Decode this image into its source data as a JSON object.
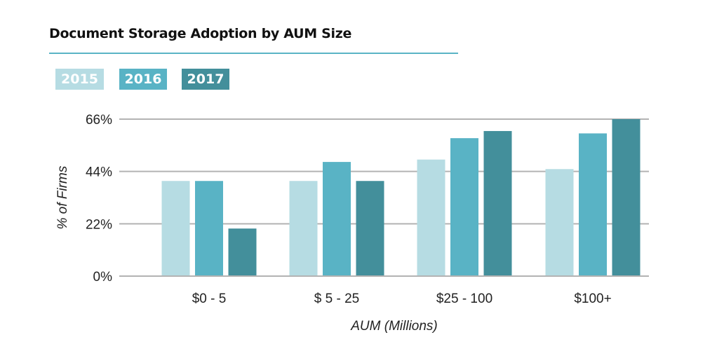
{
  "chart_data": {
    "type": "bar",
    "title": "Document Storage Adoption by AUM Size",
    "xlabel": "AUM (Millions)",
    "ylabel": "% of Firms",
    "ylim": [
      0,
      66
    ],
    "yticks": [
      0,
      22,
      44,
      66
    ],
    "ytick_labels": [
      "0%",
      "22%",
      "44%",
      "66%"
    ],
    "grid": true,
    "legend_placement": "top-left",
    "categories": [
      "$0 - 5",
      "$ 5 - 25",
      "$25 - 100",
      "$100+"
    ],
    "series": [
      {
        "name": "2015",
        "color": "#b6dce3",
        "values": [
          40,
          40,
          49,
          45
        ]
      },
      {
        "name": "2016",
        "color": "#59b3c5",
        "values": [
          40,
          48,
          58,
          60
        ]
      },
      {
        "name": "2017",
        "color": "#438f9b",
        "values": [
          20,
          40,
          61,
          66
        ]
      }
    ]
  }
}
